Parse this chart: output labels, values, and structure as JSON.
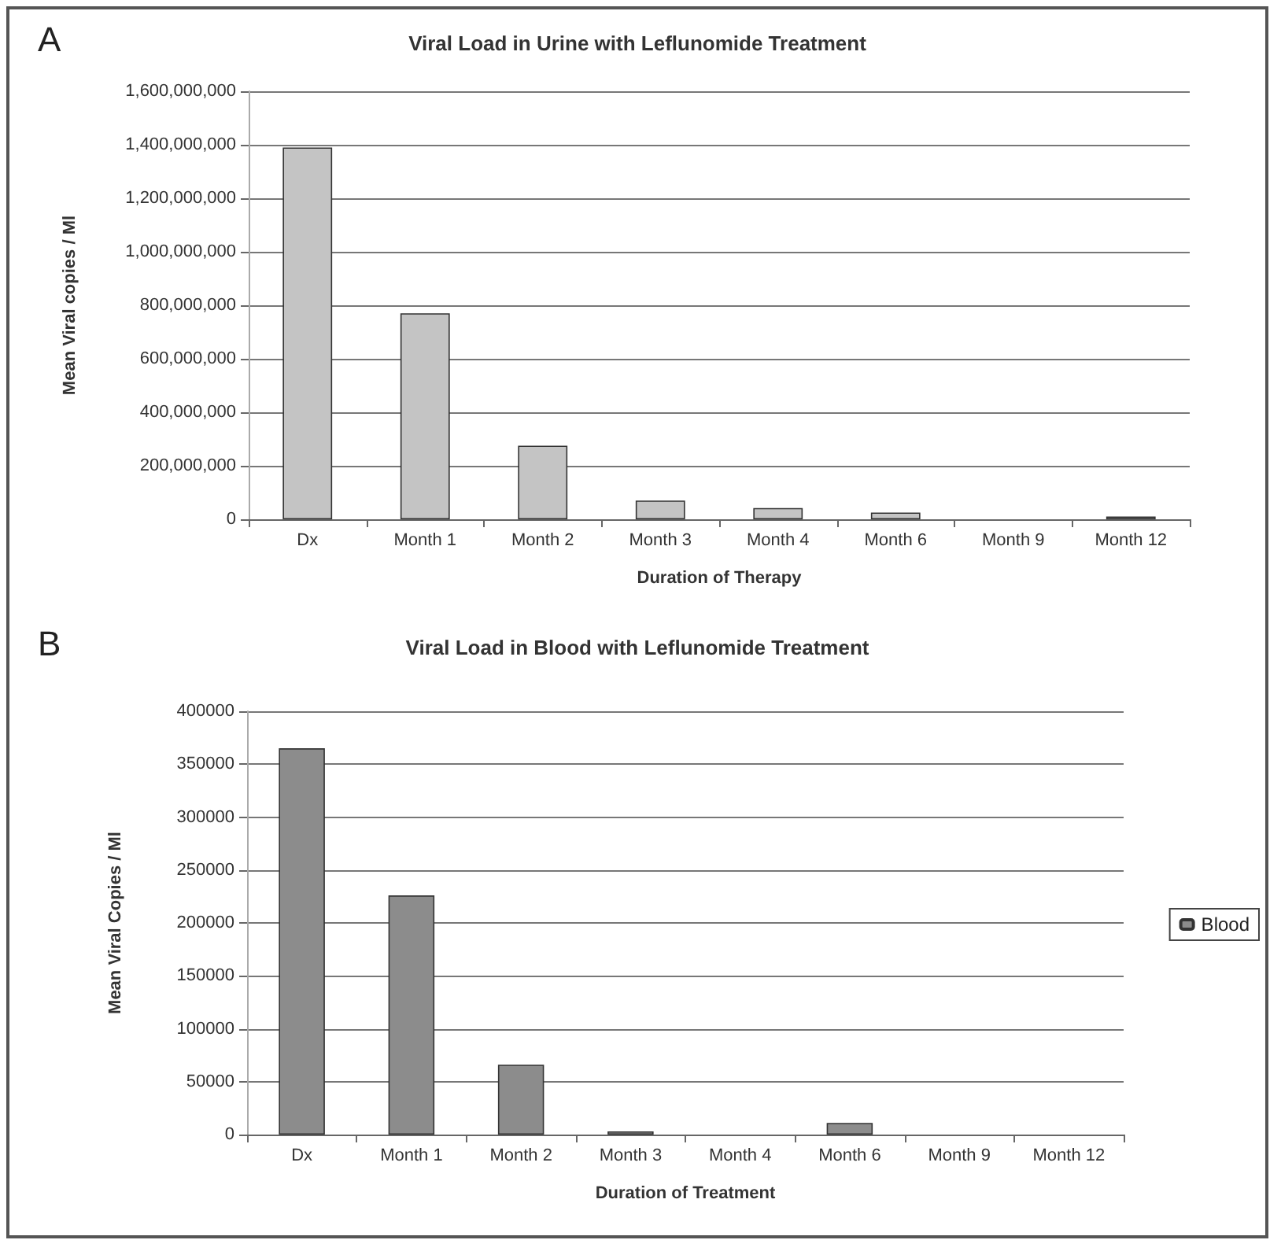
{
  "chart_data": [
    {
      "type": "bar",
      "title": "Viral Load in Urine with Leflunomide Treatment",
      "xlabel": "Duration of Therapy",
      "ylabel": "Mean Viral copies / Ml",
      "annotations": [
        "A"
      ],
      "categories": [
        "Dx",
        "Month 1",
        "Month 2",
        "Month 3",
        "Month 4",
        "Month 6",
        "Month 9",
        "Month 12"
      ],
      "series": [
        {
          "color": "#c4c4c4",
          "values": [
            1390000000,
            770000000,
            275000000,
            70000000,
            42000000,
            25000000,
            0,
            10000000
          ]
        }
      ],
      "ylim": [
        0,
        1600000000
      ],
      "yticks": [
        {
          "value": 0,
          "label": "0"
        },
        {
          "value": 200000000,
          "label": "200,000,000"
        },
        {
          "value": 400000000,
          "label": "400,000,000"
        },
        {
          "value": 600000000,
          "label": "600,000,000"
        },
        {
          "value": 800000000,
          "label": "800,000,000"
        },
        {
          "value": 1000000000,
          "label": "1,000,000,000"
        },
        {
          "value": 1200000000,
          "label": "1,200,000,000"
        },
        {
          "value": 1400000000,
          "label": "1,400,000,000"
        },
        {
          "value": 1600000000,
          "label": "1,600,000,000"
        }
      ],
      "grid": "y",
      "legend": false
    },
    {
      "type": "bar",
      "title": "Viral Load in Blood with Leflunomide Treatment",
      "xlabel": "Duration of Treatment",
      "ylabel": "Mean Viral Copies / Ml",
      "annotations": [
        "B"
      ],
      "categories": [
        "Dx",
        "Month 1",
        "Month 2",
        "Month 3",
        "Month 4",
        "Month 6",
        "Month 9",
        "Month 12"
      ],
      "series": [
        {
          "name": "Blood",
          "color": "#8c8c8c",
          "values": [
            365000,
            226000,
            66000,
            3000,
            0,
            11000,
            0,
            0
          ]
        }
      ],
      "ylim": [
        0,
        400000
      ],
      "yticks": [
        0,
        50000,
        100000,
        150000,
        200000,
        250000,
        300000,
        350000,
        400000
      ],
      "grid": "y",
      "legend": "right"
    }
  ]
}
